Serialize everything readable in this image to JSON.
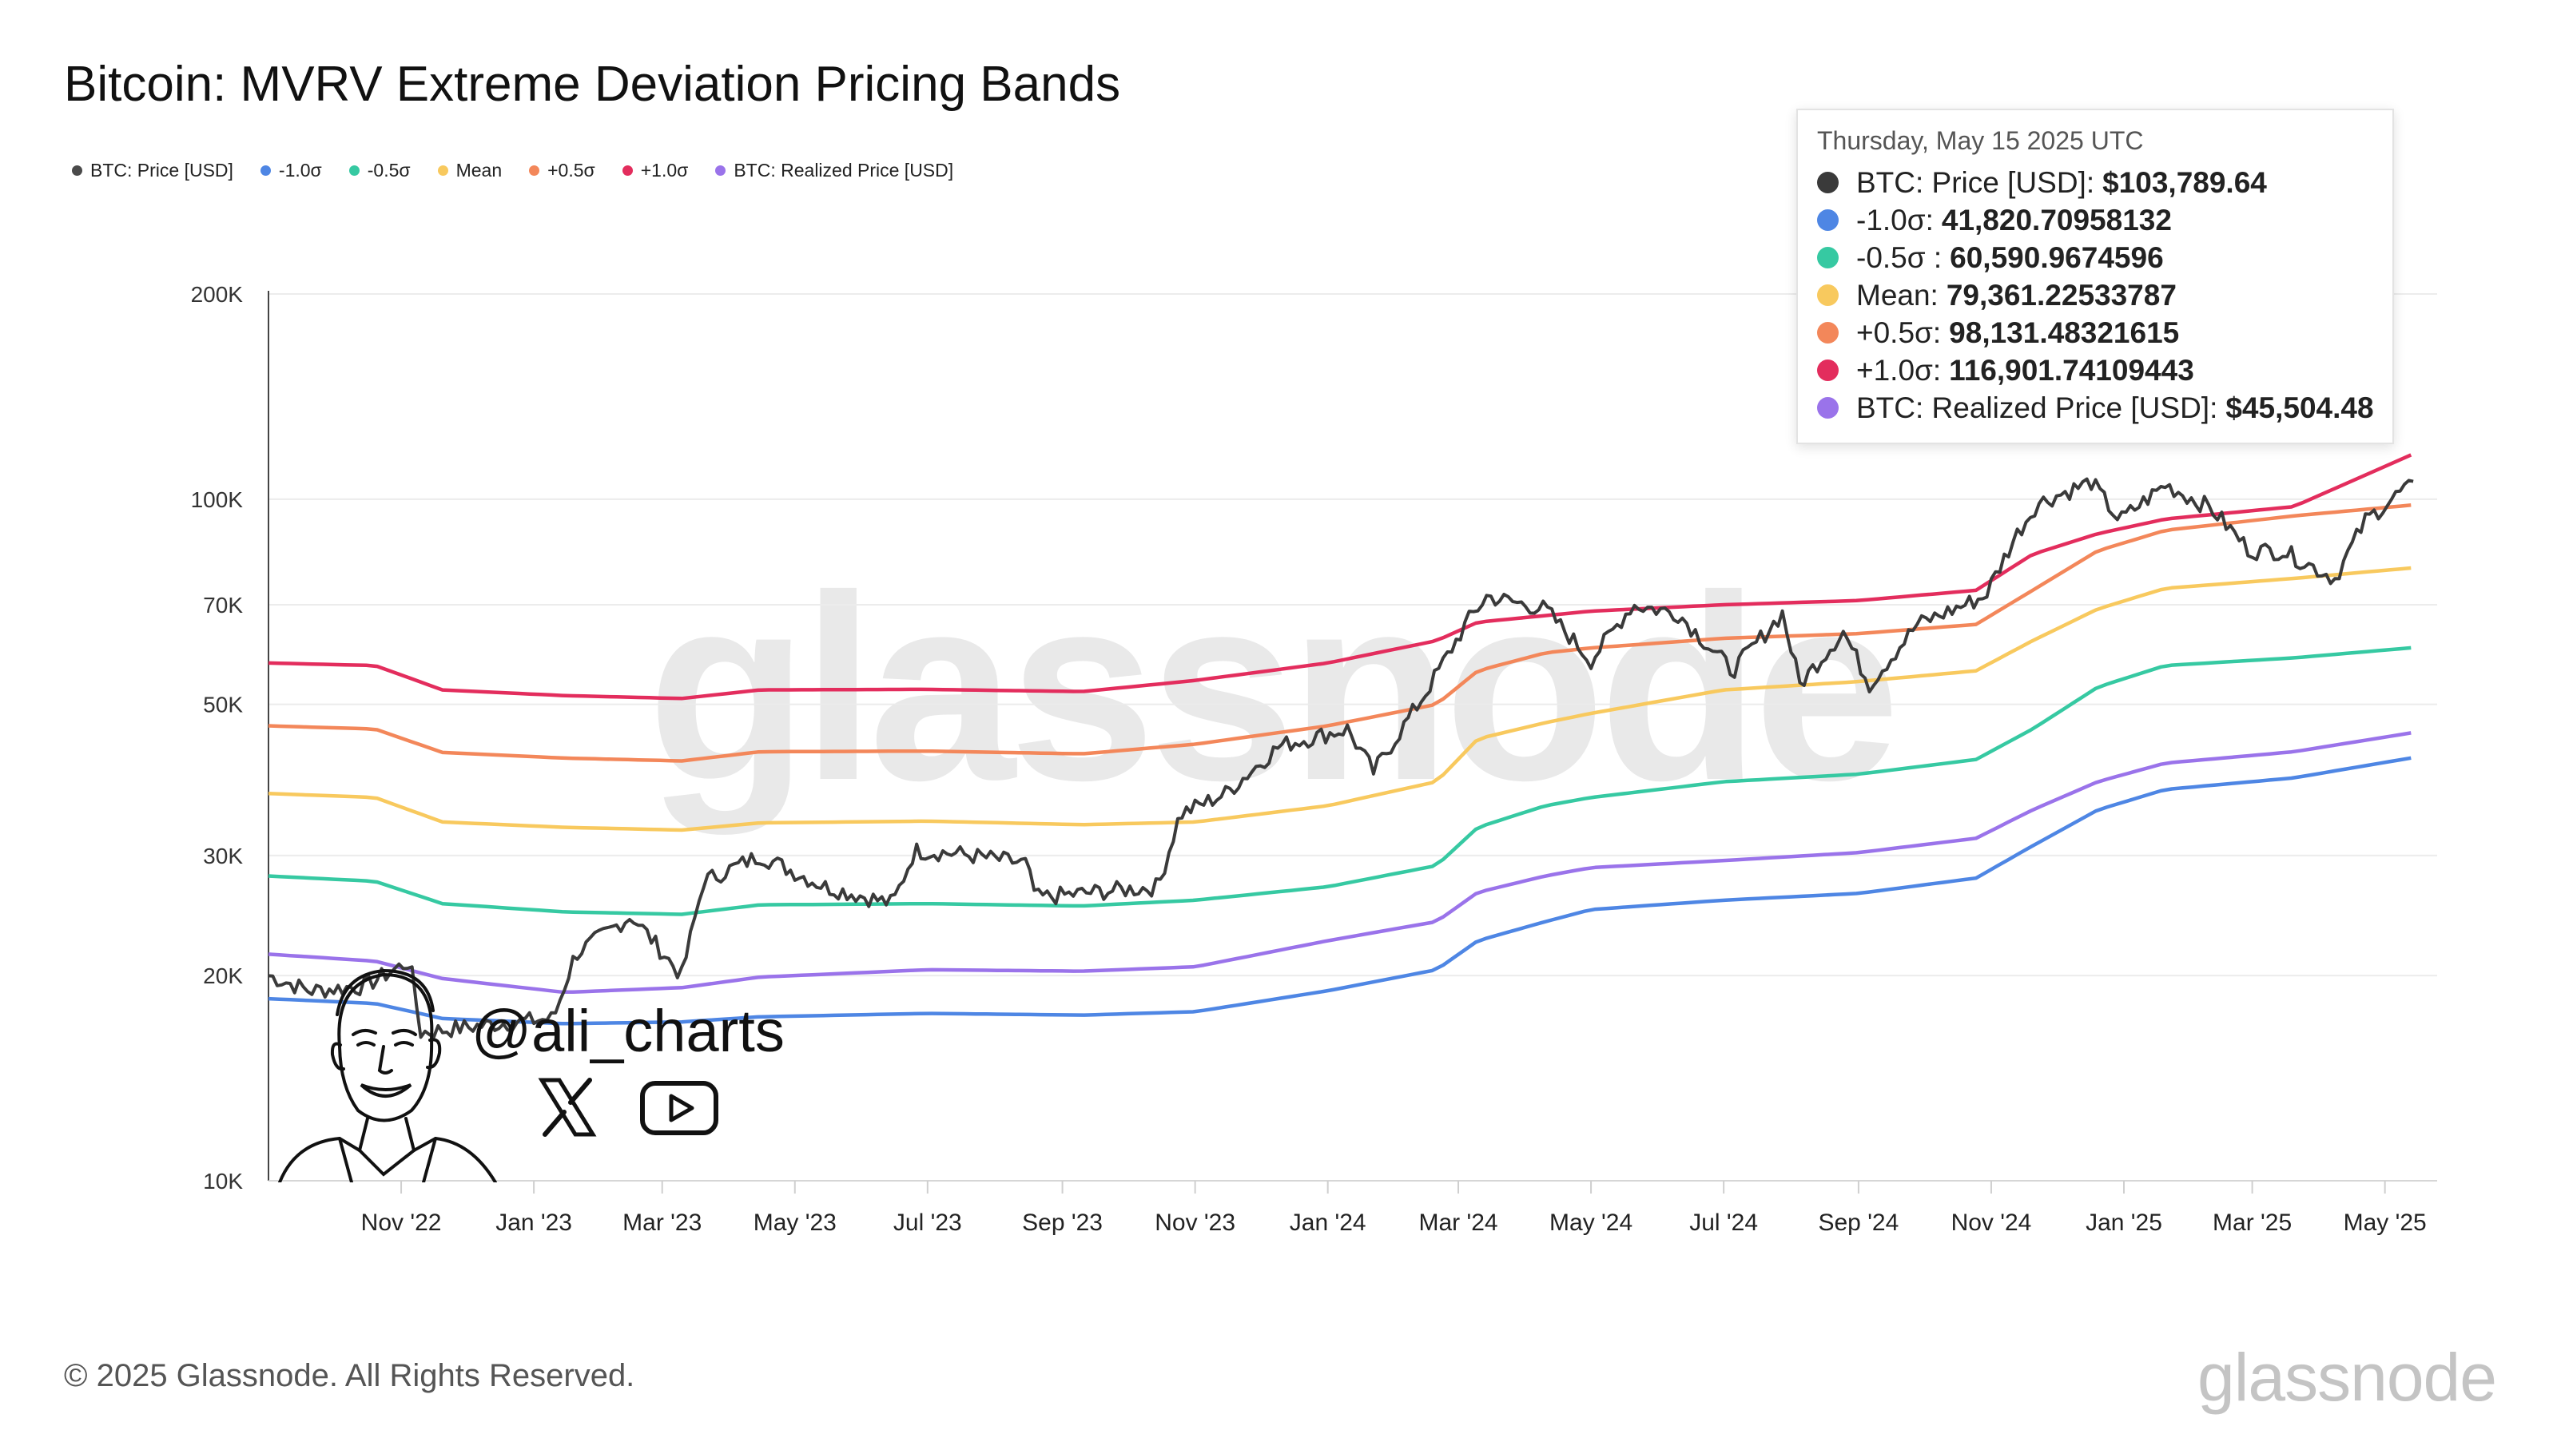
{
  "title": "Bitcoin: MVRV Extreme Deviation Pricing Bands",
  "legend": [
    {
      "label": "BTC: Price [USD]",
      "color": "#4a4a4a"
    },
    {
      "label": "-1.0σ",
      "color": "#4e86e4"
    },
    {
      "label": "-0.5σ",
      "color": "#36c9a2"
    },
    {
      "label": "Mean",
      "color": "#f8c95e"
    },
    {
      "label": "+0.5σ",
      "color": "#f3875a"
    },
    {
      "label": "+1.0σ",
      "color": "#e32d5d"
    },
    {
      "label": "BTC: Realized Price [USD]",
      "color": "#9a73ea"
    }
  ],
  "tooltip": {
    "date": "Thursday, May 15 2025 UTC",
    "rows": [
      {
        "label": "BTC: Price [USD]:",
        "value": "$103,789.64",
        "color": "#3a3a3a"
      },
      {
        "label": "-1.0σ:",
        "value": "41,820.70958132",
        "color": "#4e86e4"
      },
      {
        "label": "-0.5σ :",
        "value": "60,590.9674596",
        "color": "#36c9a2"
      },
      {
        "label": "Mean:",
        "value": "79,361.22533787",
        "color": "#f8c95e"
      },
      {
        "label": "+0.5σ:",
        "value": "98,131.48321615",
        "color": "#f3875a"
      },
      {
        "label": "+1.0σ:",
        "value": "116,901.74109443",
        "color": "#e32d5d"
      },
      {
        "label": "BTC: Realized Price [USD]:",
        "value": "$45,504.48",
        "color": "#9a73ea"
      }
    ]
  },
  "watermark": "glassnode",
  "brand": "glassnode",
  "footer": "© 2025 Glassnode. All Rights Reserved.",
  "overlay": {
    "handle": "@ali_charts",
    "icons": [
      "x-logo-icon",
      "youtube-play-icon",
      "avatar-sketch"
    ]
  },
  "chart_data": {
    "type": "line",
    "title": "Bitcoin: MVRV Extreme Deviation Pricing Bands",
    "y_scale": "log",
    "ylim": [
      10000,
      200000
    ],
    "y_ticks": [
      {
        "value": 10000,
        "label": "10K"
      },
      {
        "value": 20000,
        "label": "20K"
      },
      {
        "value": 30000,
        "label": "30K"
      },
      {
        "value": 50000,
        "label": "50K"
      },
      {
        "value": 70000,
        "label": "70K"
      },
      {
        "value": 100000,
        "label": "100K"
      },
      {
        "value": 200000,
        "label": "200K"
      }
    ],
    "xlim": [
      "2022-09-01",
      "2025-05-25"
    ],
    "x_ticks": [
      {
        "value": "2022-11-01",
        "label": "Nov '22"
      },
      {
        "value": "2023-01-01",
        "label": "Jan '23"
      },
      {
        "value": "2023-03-01",
        "label": "Mar '23"
      },
      {
        "value": "2023-05-01",
        "label": "May '23"
      },
      {
        "value": "2023-07-01",
        "label": "Jul '23"
      },
      {
        "value": "2023-09-01",
        "label": "Sep '23"
      },
      {
        "value": "2023-11-01",
        "label": "Nov '23"
      },
      {
        "value": "2024-01-01",
        "label": "Jan '24"
      },
      {
        "value": "2024-03-01",
        "label": "Mar '24"
      },
      {
        "value": "2024-05-01",
        "label": "May '24"
      },
      {
        "value": "2024-07-01",
        "label": "Jul '24"
      },
      {
        "value": "2024-09-01",
        "label": "Sep '24"
      },
      {
        "value": "2024-11-01",
        "label": "Nov '24"
      },
      {
        "value": "2025-01-01",
        "label": "Jan '25"
      },
      {
        "value": "2025-03-01",
        "label": "Mar '25"
      },
      {
        "value": "2025-05-01",
        "label": "May '25"
      }
    ],
    "grid": "horizontal",
    "legend_position": "top-left",
    "series": [
      {
        "name": "+1.0σ",
        "color": "#e32d5d",
        "points": [
          [
            "2022-09-01",
            57500
          ],
          [
            "2022-10-20",
            57000
          ],
          [
            "2022-11-20",
            52500
          ],
          [
            "2023-01-15",
            51500
          ],
          [
            "2023-03-10",
            51000
          ],
          [
            "2023-04-15",
            52500
          ],
          [
            "2023-07-01",
            52600
          ],
          [
            "2023-09-10",
            52200
          ],
          [
            "2023-11-01",
            54200
          ],
          [
            "2024-01-01",
            57500
          ],
          [
            "2024-02-20",
            62000
          ],
          [
            "2024-03-10",
            66000
          ],
          [
            "2024-05-01",
            68500
          ],
          [
            "2024-07-01",
            70000
          ],
          [
            "2024-09-01",
            71000
          ],
          [
            "2024-10-25",
            73500
          ],
          [
            "2024-11-20",
            83000
          ],
          [
            "2024-12-20",
            89000
          ],
          [
            "2025-01-20",
            93500
          ],
          [
            "2025-03-20",
            97500
          ],
          [
            "2025-05-15",
            116901.74
          ]
        ]
      },
      {
        "name": "+0.5σ",
        "color": "#f3875a",
        "points": [
          [
            "2022-09-01",
            46500
          ],
          [
            "2022-10-20",
            46000
          ],
          [
            "2022-11-20",
            42500
          ],
          [
            "2023-01-15",
            41700
          ],
          [
            "2023-03-10",
            41300
          ],
          [
            "2023-04-15",
            42600
          ],
          [
            "2023-07-01",
            42700
          ],
          [
            "2023-09-10",
            42300
          ],
          [
            "2023-11-01",
            43700
          ],
          [
            "2024-01-01",
            46500
          ],
          [
            "2024-02-20",
            50000
          ],
          [
            "2024-03-10",
            56000
          ],
          [
            "2024-04-10",
            59500
          ],
          [
            "2024-05-01",
            60500
          ],
          [
            "2024-07-01",
            62500
          ],
          [
            "2024-09-01",
            63500
          ],
          [
            "2024-10-25",
            65500
          ],
          [
            "2024-11-20",
            73500
          ],
          [
            "2024-12-20",
            84000
          ],
          [
            "2025-01-20",
            90000
          ],
          [
            "2025-03-20",
            94500
          ],
          [
            "2025-05-15",
            98131.48
          ]
        ]
      },
      {
        "name": "Mean",
        "color": "#f8c95e",
        "points": [
          [
            "2022-09-01",
            37000
          ],
          [
            "2022-10-20",
            36500
          ],
          [
            "2022-11-20",
            33600
          ],
          [
            "2023-01-15",
            33000
          ],
          [
            "2023-03-10",
            32700
          ],
          [
            "2023-04-15",
            33500
          ],
          [
            "2023-07-01",
            33700
          ],
          [
            "2023-09-10",
            33300
          ],
          [
            "2023-11-01",
            33600
          ],
          [
            "2024-01-01",
            35500
          ],
          [
            "2024-02-20",
            38500
          ],
          [
            "2024-03-10",
            44500
          ],
          [
            "2024-04-10",
            47000
          ],
          [
            "2024-05-01",
            48500
          ],
          [
            "2024-07-01",
            52500
          ],
          [
            "2024-09-01",
            54000
          ],
          [
            "2024-10-25",
            56000
          ],
          [
            "2024-11-20",
            62000
          ],
          [
            "2024-12-20",
            69000
          ],
          [
            "2025-01-20",
            74000
          ],
          [
            "2025-03-20",
            76500
          ],
          [
            "2025-05-15",
            79361.23
          ]
        ]
      },
      {
        "name": "-0.5σ",
        "color": "#36c9a2",
        "points": [
          [
            "2022-09-01",
            28000
          ],
          [
            "2022-10-20",
            27500
          ],
          [
            "2022-11-20",
            25500
          ],
          [
            "2023-01-15",
            24800
          ],
          [
            "2023-03-10",
            24600
          ],
          [
            "2023-04-15",
            25400
          ],
          [
            "2023-07-01",
            25500
          ],
          [
            "2023-09-10",
            25300
          ],
          [
            "2023-11-01",
            25800
          ],
          [
            "2024-01-01",
            27000
          ],
          [
            "2024-02-20",
            29000
          ],
          [
            "2024-03-10",
            33000
          ],
          [
            "2024-04-10",
            35500
          ],
          [
            "2024-05-01",
            36500
          ],
          [
            "2024-07-01",
            38500
          ],
          [
            "2024-09-01",
            39500
          ],
          [
            "2024-10-25",
            41500
          ],
          [
            "2024-11-20",
            46000
          ],
          [
            "2024-12-20",
            53000
          ],
          [
            "2025-01-20",
            57000
          ],
          [
            "2025-03-20",
            58500
          ],
          [
            "2025-05-15",
            60590.97
          ]
        ]
      },
      {
        "name": "BTC: Realized Price [USD]",
        "color": "#9a73ea",
        "points": [
          [
            "2022-09-01",
            21500
          ],
          [
            "2022-10-20",
            21000
          ],
          [
            "2022-11-20",
            19800
          ],
          [
            "2023-01-15",
            18900
          ],
          [
            "2023-03-10",
            19200
          ],
          [
            "2023-04-15",
            19900
          ],
          [
            "2023-07-01",
            20400
          ],
          [
            "2023-09-10",
            20300
          ],
          [
            "2023-11-01",
            20600
          ],
          [
            "2024-01-01",
            22500
          ],
          [
            "2024-02-20",
            24000
          ],
          [
            "2024-03-10",
            26500
          ],
          [
            "2024-04-10",
            28000
          ],
          [
            "2024-05-01",
            28800
          ],
          [
            "2024-07-01",
            29500
          ],
          [
            "2024-09-01",
            30300
          ],
          [
            "2024-10-25",
            31800
          ],
          [
            "2024-11-20",
            35000
          ],
          [
            "2024-12-20",
            38500
          ],
          [
            "2025-01-20",
            41000
          ],
          [
            "2025-03-20",
            42600
          ],
          [
            "2025-05-15",
            45504.48
          ]
        ]
      },
      {
        "name": "-1.0σ",
        "color": "#4e86e4",
        "points": [
          [
            "2022-09-01",
            18500
          ],
          [
            "2022-10-20",
            18200
          ],
          [
            "2022-11-20",
            17300
          ],
          [
            "2023-01-15",
            17000
          ],
          [
            "2023-03-10",
            17100
          ],
          [
            "2023-04-15",
            17400
          ],
          [
            "2023-07-01",
            17600
          ],
          [
            "2023-09-10",
            17500
          ],
          [
            "2023-11-01",
            17700
          ],
          [
            "2024-01-01",
            19000
          ],
          [
            "2024-02-20",
            20400
          ],
          [
            "2024-03-10",
            22500
          ],
          [
            "2024-04-10",
            24000
          ],
          [
            "2024-05-01",
            25000
          ],
          [
            "2024-07-01",
            25800
          ],
          [
            "2024-09-01",
            26400
          ],
          [
            "2024-10-25",
            27800
          ],
          [
            "2024-11-20",
            31000
          ],
          [
            "2024-12-20",
            35000
          ],
          [
            "2025-01-20",
            37500
          ],
          [
            "2025-03-20",
            39000
          ],
          [
            "2025-05-15",
            41820.71
          ]
        ]
      },
      {
        "name": "BTC: Price [USD]",
        "color": "#3a3a3a",
        "points": [
          [
            "2022-09-01",
            20000
          ],
          [
            "2022-09-20",
            19000
          ],
          [
            "2022-10-15",
            19300
          ],
          [
            "2022-11-05",
            21000
          ],
          [
            "2022-11-10",
            16500
          ],
          [
            "2022-12-15",
            17000
          ],
          [
            "2023-01-10",
            17300
          ],
          [
            "2023-01-20",
            21500
          ],
          [
            "2023-02-15",
            24500
          ],
          [
            "2023-03-10",
            20000
          ],
          [
            "2023-03-20",
            27500
          ],
          [
            "2023-04-15",
            30000
          ],
          [
            "2023-05-15",
            27000
          ],
          [
            "2023-06-15",
            25500
          ],
          [
            "2023-06-25",
            30500
          ],
          [
            "2023-07-15",
            30200
          ],
          [
            "2023-08-15",
            29200
          ],
          [
            "2023-08-20",
            26000
          ],
          [
            "2023-09-15",
            26500
          ],
          [
            "2023-10-15",
            27000
          ],
          [
            "2023-10-25",
            34500
          ],
          [
            "2023-11-15",
            37000
          ],
          [
            "2023-12-10",
            43500
          ],
          [
            "2024-01-10",
            46000
          ],
          [
            "2024-01-22",
            39800
          ],
          [
            "2024-02-15",
            52000
          ],
          [
            "2024-03-05",
            66000
          ],
          [
            "2024-03-14",
            72000
          ],
          [
            "2024-04-10",
            69000
          ],
          [
            "2024-05-01",
            58000
          ],
          [
            "2024-05-20",
            70000
          ],
          [
            "2024-06-10",
            68000
          ],
          [
            "2024-07-05",
            56000
          ],
          [
            "2024-07-28",
            68000
          ],
          [
            "2024-08-05",
            53500
          ],
          [
            "2024-08-25",
            64000
          ],
          [
            "2024-09-06",
            53500
          ],
          [
            "2024-09-28",
            65500
          ],
          [
            "2024-10-29",
            72000
          ],
          [
            "2024-11-12",
            88000
          ],
          [
            "2024-11-22",
            98500
          ],
          [
            "2024-12-17",
            106000
          ],
          [
            "2024-12-30",
            93000
          ],
          [
            "2025-01-20",
            105000
          ],
          [
            "2025-02-10",
            97000
          ],
          [
            "2025-02-28",
            84000
          ],
          [
            "2025-03-15",
            84000
          ],
          [
            "2025-04-08",
            76500
          ],
          [
            "2025-04-22",
            93000
          ],
          [
            "2025-05-10",
            103500
          ],
          [
            "2025-05-15",
            103789.64
          ]
        ]
      }
    ]
  }
}
